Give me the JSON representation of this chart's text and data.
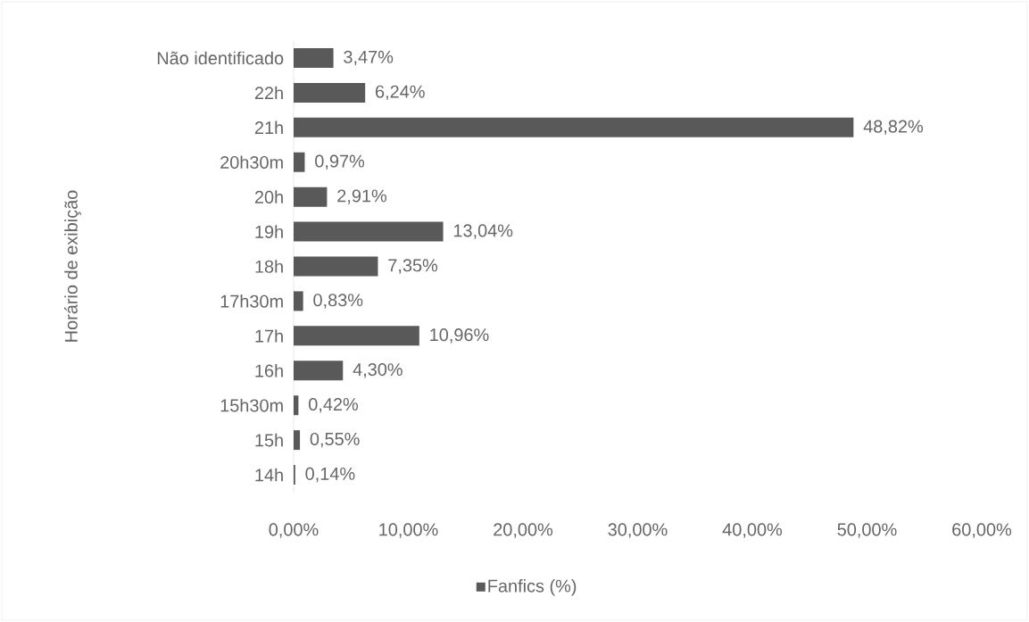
{
  "chart_data": {
    "type": "bar",
    "orientation": "horizontal",
    "ylabel": "Horário de exibição",
    "categories": [
      "Não identificado",
      "22h",
      "21h",
      "20h30m",
      "20h",
      "19h",
      "18h",
      "17h30m",
      "17h",
      "16h",
      "15h30m",
      "15h",
      "14h"
    ],
    "series": [
      {
        "name": "Fanfics (%)",
        "color": "#595959",
        "values": [
          3.47,
          6.24,
          48.82,
          0.97,
          2.91,
          13.04,
          7.35,
          0.83,
          10.96,
          4.3,
          0.42,
          0.55,
          0.14
        ],
        "value_labels": [
          "3,47%",
          "6,24%",
          "48,82%",
          "0,97%",
          "2,91%",
          "13,04%",
          "7,35%",
          "0,83%",
          "10,96%",
          "4,30%",
          "0,42%",
          "0,55%",
          "0,14%"
        ]
      }
    ],
    "xlim": [
      0,
      60
    ],
    "xticks": [
      {
        "value": 0,
        "label": "0,00%"
      },
      {
        "value": 10,
        "label": "10,00%"
      },
      {
        "value": 20,
        "label": "20,00%"
      },
      {
        "value": 30,
        "label": "30,00%"
      },
      {
        "value": 40,
        "label": "40,00%"
      },
      {
        "value": 50,
        "label": "50,00%"
      },
      {
        "value": 60,
        "label": "60,00%"
      }
    ],
    "legend": "bottom"
  }
}
